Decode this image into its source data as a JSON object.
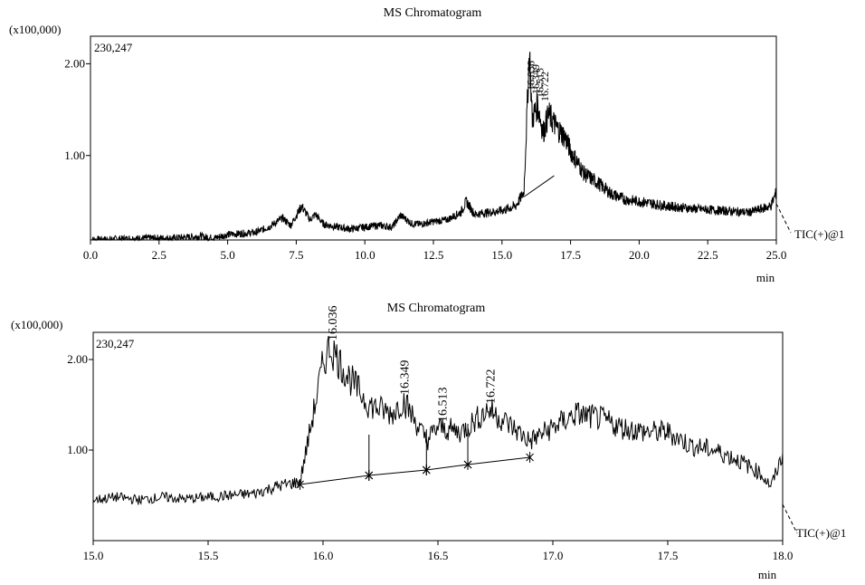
{
  "chart_data": [
    {
      "type": "line",
      "title": "MS Chromatogram",
      "y_scale_label": "(x100,000)",
      "max_intensity_label": "230,247",
      "trace_label": "TIC(+)@1",
      "xlabel": "min",
      "xlim": [
        0.0,
        25.0
      ],
      "ylim": [
        0.08,
        2.3
      ],
      "x_ticks": [
        "0.0",
        "2.5",
        "5.0",
        "7.5",
        "10.0",
        "12.5",
        "15.0",
        "17.5",
        "20.0",
        "22.5",
        "25.0"
      ],
      "y_ticks": [
        "1.00",
        "2.00"
      ],
      "peak_labels": [
        "16.036",
        "16.349",
        "16.513",
        "16.722"
      ],
      "series": [
        {
          "x": [
            0.0,
            1.0,
            2.0,
            3.0,
            4.0,
            4.5,
            5.0,
            6.0,
            6.5,
            7.0,
            7.3,
            7.7,
            8.0,
            8.2,
            8.5,
            9.0,
            9.5,
            10.0,
            10.5,
            11.0,
            11.3,
            11.7,
            12.0,
            12.5,
            13.0,
            13.5,
            13.7,
            14.0,
            14.5,
            15.0,
            15.5,
            15.8,
            16.0,
            16.1,
            16.3,
            16.5,
            16.7,
            17.0,
            17.3,
            17.5,
            18.0,
            18.5,
            19.0,
            19.5,
            20.0,
            21.0,
            22.0,
            23.0,
            24.0,
            24.8,
            25.0
          ],
          "y": [
            0.08,
            0.09,
            0.1,
            0.1,
            0.12,
            0.1,
            0.14,
            0.16,
            0.22,
            0.32,
            0.24,
            0.45,
            0.3,
            0.36,
            0.25,
            0.22,
            0.2,
            0.22,
            0.24,
            0.22,
            0.35,
            0.26,
            0.25,
            0.28,
            0.3,
            0.38,
            0.5,
            0.36,
            0.38,
            0.4,
            0.45,
            0.6,
            2.15,
            1.4,
            1.55,
            1.25,
            1.45,
            1.3,
            1.2,
            1.05,
            0.8,
            0.7,
            0.58,
            0.52,
            0.5,
            0.45,
            0.42,
            0.4,
            0.38,
            0.45,
            0.6
          ]
        }
      ]
    },
    {
      "type": "line",
      "title": "MS Chromatogram",
      "y_scale_label": "(x100,000)",
      "max_intensity_label": "230,247",
      "trace_label": "TIC(+)@1",
      "xlabel": "min",
      "xlim": [
        15.0,
        18.0
      ],
      "ylim": [
        0.0,
        2.3
      ],
      "x_ticks": [
        "15.0",
        "15.5",
        "16.0",
        "16.5",
        "17.0",
        "17.5",
        "18.0"
      ],
      "y_ticks": [
        "1.00",
        "2.00"
      ],
      "peak_labels": [
        "16.036",
        "16.349",
        "16.513",
        "16.722"
      ],
      "series": [
        {
          "x": [
            15.0,
            15.1,
            15.2,
            15.3,
            15.4,
            15.5,
            15.6,
            15.7,
            15.8,
            15.9,
            15.95,
            16.0,
            16.03,
            16.1,
            16.2,
            16.3,
            16.35,
            16.45,
            16.5,
            16.6,
            16.72,
            16.8,
            16.9,
            17.0,
            17.1,
            17.2,
            17.3,
            17.4,
            17.5,
            17.6,
            17.7,
            17.8,
            17.9,
            17.95,
            18.0
          ],
          "y": [
            0.45,
            0.48,
            0.45,
            0.48,
            0.46,
            0.48,
            0.5,
            0.52,
            0.6,
            0.65,
            1.3,
            1.95,
            2.15,
            1.85,
            1.5,
            1.4,
            1.55,
            1.1,
            1.25,
            1.2,
            1.45,
            1.3,
            1.1,
            1.25,
            1.4,
            1.35,
            1.25,
            1.2,
            1.2,
            1.05,
            1.0,
            0.9,
            0.75,
            0.6,
            0.95
          ]
        }
      ],
      "baseline_segments": [
        {
          "x": [
            15.9,
            16.2
          ],
          "y": [
            0.62,
            0.72
          ]
        },
        {
          "x": [
            16.2,
            16.45
          ],
          "y": [
            0.72,
            0.78
          ]
        },
        {
          "x": [
            16.45,
            16.63
          ],
          "y": [
            0.78,
            0.84
          ]
        },
        {
          "x": [
            16.63,
            16.9
          ],
          "y": [
            0.84,
            0.92
          ]
        }
      ],
      "peaks": [
        {
          "label": "16.036",
          "x": 16.036,
          "y": 2.15
        },
        {
          "label": "16.349",
          "x": 16.349,
          "y": 1.55
        },
        {
          "label": "16.513",
          "x": 16.513,
          "y": 1.25
        },
        {
          "label": "16.722",
          "x": 16.722,
          "y": 1.45
        }
      ]
    }
  ]
}
